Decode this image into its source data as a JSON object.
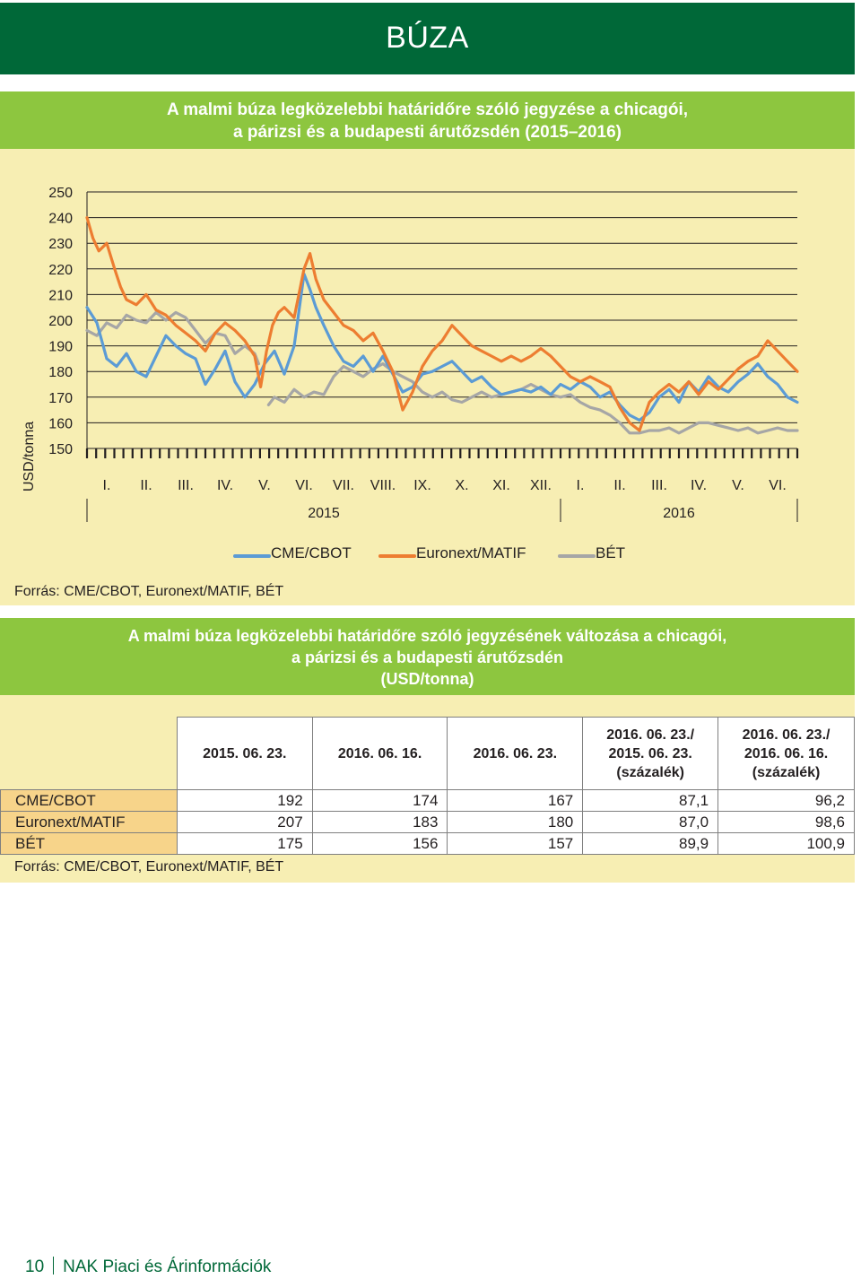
{
  "header": {
    "title": "BÚZA"
  },
  "chart_section": {
    "title_line1": "A malmi búza legközelebbi határidőre szóló jegyzése a chicagói,",
    "title_line2": "a párizsi és a budapesti árutőzsdén (2015–2016)",
    "source": "Forrás: CME/CBOT, Euronext/MATIF, BÉT"
  },
  "chart_data": {
    "type": "line",
    "title": "A malmi búza legközelebbi határidőre szóló jegyzése a chicagói, a párizsi és a budapesti árutőzsdén (2015–2016)",
    "ylabel": "USD/tonna",
    "ylim": [
      150,
      250
    ],
    "yticks": [
      "150",
      "160",
      "170",
      "180",
      "190",
      "200",
      "210",
      "220",
      "230",
      "240",
      "250"
    ],
    "months": [
      "I.",
      "II.",
      "III.",
      "IV.",
      "V.",
      "VI.",
      "VII.",
      "VIII.",
      "IX.",
      "X.",
      "XI.",
      "XII.",
      "I.",
      "II.",
      "III.",
      "IV.",
      "V.",
      "VI."
    ],
    "years": [
      "2015",
      "2016"
    ],
    "grid": true,
    "legend_position": "bottom",
    "series": [
      {
        "name": "CME/CBOT",
        "color": "#5b9bd5",
        "points": [
          [
            0.0,
            205
          ],
          [
            0.25,
            199
          ],
          [
            0.5,
            185
          ],
          [
            0.75,
            182
          ],
          [
            1.0,
            187
          ],
          [
            1.25,
            180
          ],
          [
            1.5,
            178
          ],
          [
            1.75,
            186
          ],
          [
            2.0,
            194
          ],
          [
            2.25,
            190
          ],
          [
            2.5,
            187
          ],
          [
            2.75,
            185
          ],
          [
            3.0,
            175
          ],
          [
            3.25,
            181
          ],
          [
            3.5,
            188
          ],
          [
            3.75,
            176
          ],
          [
            4.0,
            170
          ],
          [
            4.25,
            175
          ],
          [
            4.5,
            183
          ],
          [
            4.75,
            188
          ],
          [
            5.0,
            179
          ],
          [
            5.25,
            190
          ],
          [
            5.5,
            218
          ],
          [
            5.65,
            212
          ],
          [
            5.8,
            205
          ],
          [
            6.0,
            198
          ],
          [
            6.25,
            190
          ],
          [
            6.5,
            184
          ],
          [
            6.75,
            182
          ],
          [
            7.0,
            186
          ],
          [
            7.25,
            180
          ],
          [
            7.5,
            186
          ],
          [
            7.75,
            179
          ],
          [
            8.0,
            172
          ],
          [
            8.25,
            174
          ],
          [
            8.5,
            179
          ],
          [
            8.75,
            180
          ],
          [
            9.0,
            182
          ],
          [
            9.25,
            184
          ],
          [
            9.5,
            180
          ],
          [
            9.75,
            176
          ],
          [
            10.0,
            178
          ],
          [
            10.25,
            174
          ],
          [
            10.5,
            171
          ],
          [
            10.75,
            172
          ],
          [
            11.0,
            173
          ],
          [
            11.25,
            172
          ],
          [
            11.5,
            174
          ],
          [
            11.75,
            171
          ],
          [
            12.0,
            175
          ],
          [
            12.25,
            173
          ],
          [
            12.5,
            176
          ],
          [
            12.75,
            174
          ],
          [
            13.0,
            170
          ],
          [
            13.25,
            172
          ],
          [
            13.5,
            167
          ],
          [
            13.75,
            163
          ],
          [
            14.0,
            161
          ],
          [
            14.25,
            164
          ],
          [
            14.5,
            170
          ],
          [
            14.75,
            173
          ],
          [
            15.0,
            168
          ],
          [
            15.25,
            176
          ],
          [
            15.5,
            172
          ],
          [
            15.75,
            178
          ],
          [
            16.0,
            174
          ],
          [
            16.25,
            172
          ],
          [
            16.5,
            176
          ],
          [
            16.75,
            179
          ],
          [
            17.0,
            183
          ],
          [
            17.25,
            178
          ],
          [
            17.5,
            175
          ],
          [
            17.75,
            170
          ],
          [
            18.0,
            168
          ]
        ]
      },
      {
        "name": "Euronext/MATIF",
        "color": "#ed7d31",
        "points": [
          [
            0.0,
            240
          ],
          [
            0.15,
            232
          ],
          [
            0.3,
            227
          ],
          [
            0.5,
            230
          ],
          [
            0.7,
            220
          ],
          [
            0.85,
            213
          ],
          [
            1.0,
            208
          ],
          [
            1.25,
            206
          ],
          [
            1.5,
            210
          ],
          [
            1.75,
            204
          ],
          [
            2.0,
            202
          ],
          [
            2.25,
            198
          ],
          [
            2.5,
            195
          ],
          [
            2.75,
            192
          ],
          [
            3.0,
            188
          ],
          [
            3.25,
            195
          ],
          [
            3.5,
            199
          ],
          [
            3.75,
            196
          ],
          [
            4.0,
            192
          ],
          [
            4.25,
            186
          ],
          [
            4.4,
            174
          ],
          [
            4.55,
            188
          ],
          [
            4.7,
            198
          ],
          [
            4.85,
            203
          ],
          [
            5.0,
            205
          ],
          [
            5.25,
            201
          ],
          [
            5.5,
            220
          ],
          [
            5.65,
            226
          ],
          [
            5.8,
            216
          ],
          [
            6.0,
            208
          ],
          [
            6.25,
            203
          ],
          [
            6.5,
            198
          ],
          [
            6.75,
            196
          ],
          [
            7.0,
            192
          ],
          [
            7.25,
            195
          ],
          [
            7.5,
            188
          ],
          [
            7.75,
            180
          ],
          [
            8.0,
            165
          ],
          [
            8.25,
            172
          ],
          [
            8.5,
            182
          ],
          [
            8.75,
            188
          ],
          [
            9.0,
            192
          ],
          [
            9.25,
            198
          ],
          [
            9.5,
            194
          ],
          [
            9.75,
            190
          ],
          [
            10.0,
            188
          ],
          [
            10.25,
            186
          ],
          [
            10.5,
            184
          ],
          [
            10.75,
            186
          ],
          [
            11.0,
            184
          ],
          [
            11.25,
            186
          ],
          [
            11.5,
            189
          ],
          [
            11.75,
            186
          ],
          [
            12.0,
            182
          ],
          [
            12.25,
            178
          ],
          [
            12.5,
            176
          ],
          [
            12.75,
            178
          ],
          [
            13.0,
            176
          ],
          [
            13.25,
            174
          ],
          [
            13.5,
            166
          ],
          [
            13.75,
            160
          ],
          [
            14.0,
            157
          ],
          [
            14.25,
            168
          ],
          [
            14.5,
            172
          ],
          [
            14.75,
            175
          ],
          [
            15.0,
            172
          ],
          [
            15.25,
            176
          ],
          [
            15.5,
            171
          ],
          [
            15.75,
            176
          ],
          [
            16.0,
            173
          ],
          [
            16.25,
            177
          ],
          [
            16.5,
            181
          ],
          [
            16.75,
            184
          ],
          [
            17.0,
            186
          ],
          [
            17.25,
            192
          ],
          [
            17.5,
            188
          ],
          [
            17.75,
            184
          ],
          [
            18.0,
            180
          ]
        ]
      },
      {
        "name": "BÉT",
        "color": "#a6a6a6",
        "points": [
          [
            0.0,
            196
          ],
          [
            0.25,
            194
          ],
          [
            0.5,
            199
          ],
          [
            0.75,
            197
          ],
          [
            1.0,
            202
          ],
          [
            1.25,
            200
          ],
          [
            1.5,
            199
          ],
          [
            1.75,
            203
          ],
          [
            2.0,
            200
          ],
          [
            2.25,
            203
          ],
          [
            2.5,
            201
          ],
          [
            2.75,
            196
          ],
          [
            3.0,
            191
          ],
          [
            3.25,
            195
          ],
          [
            3.5,
            194
          ],
          [
            3.75,
            187
          ],
          [
            4.0,
            190
          ],
          [
            4.25,
            187
          ],
          [
            4.35,
            183
          ],
          [
            4.4,
            null
          ],
          [
            4.6,
            167
          ],
          [
            4.75,
            170
          ],
          [
            5.0,
            168
          ],
          [
            5.25,
            173
          ],
          [
            5.5,
            170
          ],
          [
            5.75,
            172
          ],
          [
            6.0,
            171
          ],
          [
            6.25,
            178
          ],
          [
            6.5,
            182
          ],
          [
            6.75,
            180
          ],
          [
            7.0,
            178
          ],
          [
            7.25,
            181
          ],
          [
            7.5,
            183
          ],
          [
            7.75,
            180
          ],
          [
            8.0,
            178
          ],
          [
            8.25,
            176
          ],
          [
            8.5,
            172
          ],
          [
            8.75,
            170
          ],
          [
            9.0,
            172
          ],
          [
            9.25,
            169
          ],
          [
            9.5,
            168
          ],
          [
            9.75,
            170
          ],
          [
            10.0,
            172
          ],
          [
            10.25,
            170
          ],
          [
            10.5,
            171
          ],
          [
            10.75,
            172
          ],
          [
            11.0,
            173
          ],
          [
            11.25,
            175
          ],
          [
            11.5,
            173
          ],
          [
            11.75,
            171
          ],
          [
            12.0,
            170
          ],
          [
            12.25,
            171
          ],
          [
            12.5,
            168
          ],
          [
            12.75,
            166
          ],
          [
            13.0,
            165
          ],
          [
            13.25,
            163
          ],
          [
            13.5,
            160
          ],
          [
            13.75,
            156
          ],
          [
            14.0,
            156
          ],
          [
            14.25,
            157
          ],
          [
            14.5,
            157
          ],
          [
            14.75,
            158
          ],
          [
            15.0,
            156
          ],
          [
            15.25,
            158
          ],
          [
            15.5,
            160
          ],
          [
            15.75,
            160
          ],
          [
            16.0,
            159
          ],
          [
            16.25,
            158
          ],
          [
            16.5,
            157
          ],
          [
            16.75,
            158
          ],
          [
            17.0,
            156
          ],
          [
            17.25,
            157
          ],
          [
            17.5,
            158
          ],
          [
            17.75,
            157
          ],
          [
            18.0,
            157
          ]
        ]
      }
    ]
  },
  "table_section": {
    "title_line1": "A malmi búza legközelebbi határidőre szóló jegyzésének változása a chicagói,",
    "title_line2": "a párizsi és a budapesti árutőzsdén",
    "title_line3": "(USD/tonna)",
    "source": "Forrás: CME/CBOT, Euronext/MATIF, BÉT",
    "headers": [
      [
        "2015. 06. 23."
      ],
      [
        "2016. 06. 16."
      ],
      [
        "2016. 06. 23."
      ],
      [
        "2016. 06. 23./",
        "2015. 06. 23.",
        "(százalék)"
      ],
      [
        "2016. 06. 23./",
        "2016. 06. 16.",
        "(százalék)"
      ]
    ],
    "rows": [
      {
        "label": "CME/CBOT",
        "values": [
          "192",
          "174",
          "167",
          "87,1",
          "96,2"
        ]
      },
      {
        "label": "Euronext/MATIF",
        "values": [
          "207",
          "183",
          "180",
          "87,0",
          "98,6"
        ]
      },
      {
        "label": "BÉT",
        "values": [
          "175",
          "156",
          "157",
          "89,9",
          "100,9"
        ]
      }
    ]
  },
  "footer": {
    "page_number": "10",
    "publication": "NAK Piaci és Árinformációk"
  }
}
